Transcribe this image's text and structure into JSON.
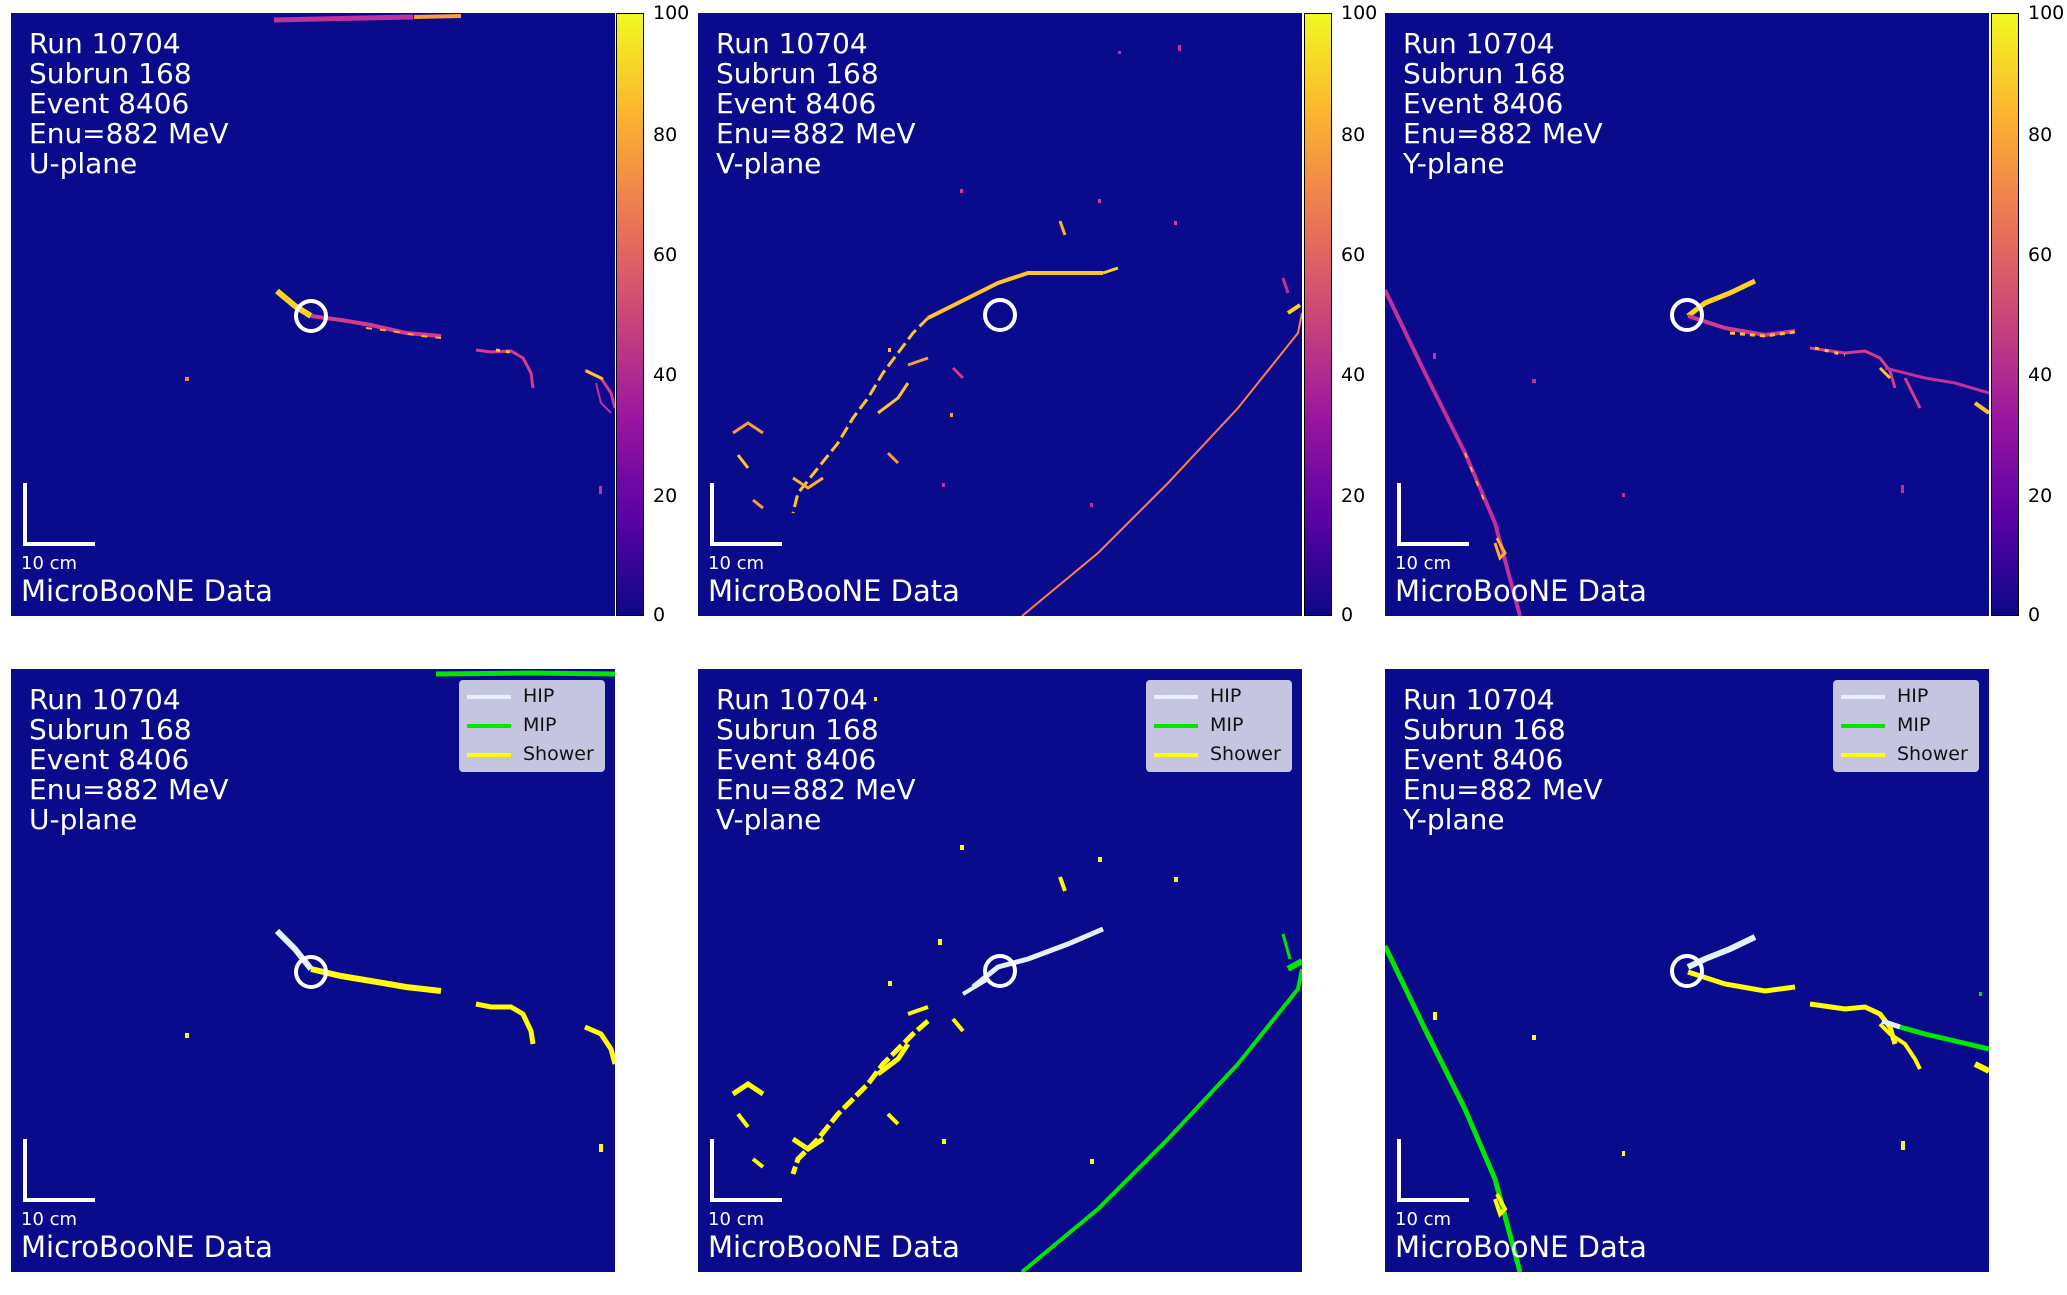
{
  "info_lines": [
    "Run 10704",
    "Subrun 168",
    "Event 8406",
    "Enu=882 MeV"
  ],
  "planes": [
    "U-plane",
    "V-plane",
    "Y-plane"
  ],
  "scale_label": "10 cm",
  "data_label": "MicroBooNE Data",
  "colorbar": {
    "ticks": [
      "100",
      "80",
      "60",
      "40",
      "20",
      "0"
    ]
  },
  "legend": [
    {
      "label": "HIP",
      "color": "#e6f0ff"
    },
    {
      "label": "MIP",
      "color": "#00e600"
    },
    {
      "label": "Shower",
      "color": "#ffff00"
    }
  ],
  "colors": {
    "background": "#0a0a8c",
    "vertex_circle": "#ffffff",
    "high_charge": "#ffe800",
    "mid_charge": "#d63a8c",
    "hip": "#e6f0ff",
    "mip": "#00e600",
    "shower": "#ffff00"
  }
}
